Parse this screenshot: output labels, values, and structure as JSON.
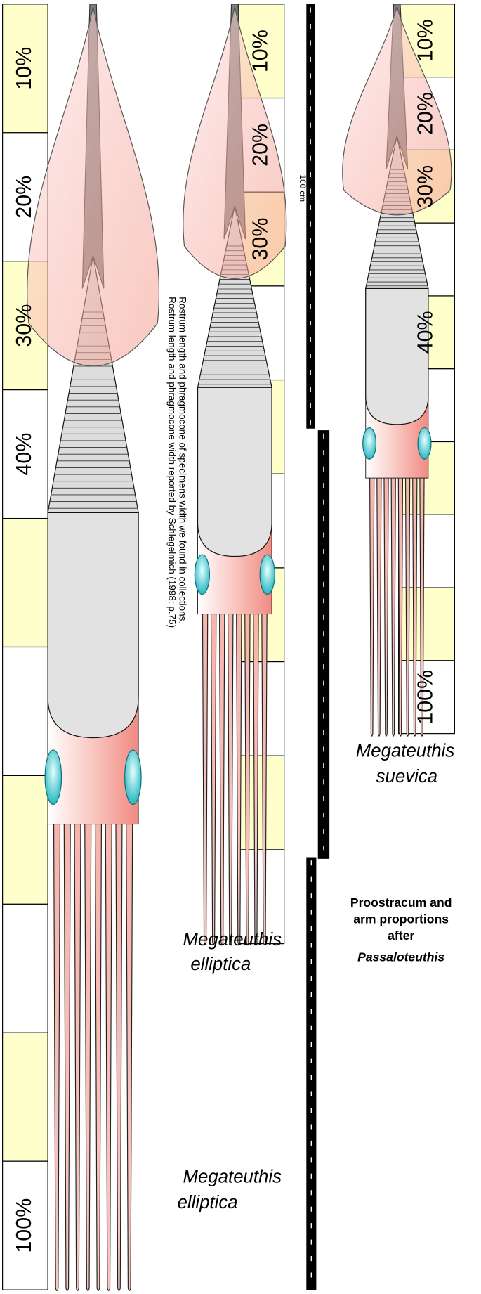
{
  "scale_bar": {
    "label": "100 cm"
  },
  "caption": {
    "line1": "Rostrum length and phragmocone of specimens width we found in collections.",
    "line2": "Rostrum length and phragmocone width reported by Schlegelmich (1998: p.75)"
  },
  "specimens": [
    {
      "genus": "Megateuthis",
      "species": "elliptica",
      "scale_labels": [
        "10%",
        "20%",
        "30%",
        "40%",
        "100%"
      ]
    },
    {
      "genus": "Megateuthis",
      "species": "elliptica",
      "scale_labels": [
        "10%",
        "20%",
        "30%"
      ]
    },
    {
      "genus": "Megateuthis",
      "species": "suevica",
      "scale_labels": [
        "10%",
        "20%",
        "30%",
        "40%",
        "100%"
      ]
    }
  ],
  "note": {
    "line1": "Proostracum and",
    "line2": "arm proportions",
    "line3": "after",
    "line4": "Passaloteuthis"
  }
}
